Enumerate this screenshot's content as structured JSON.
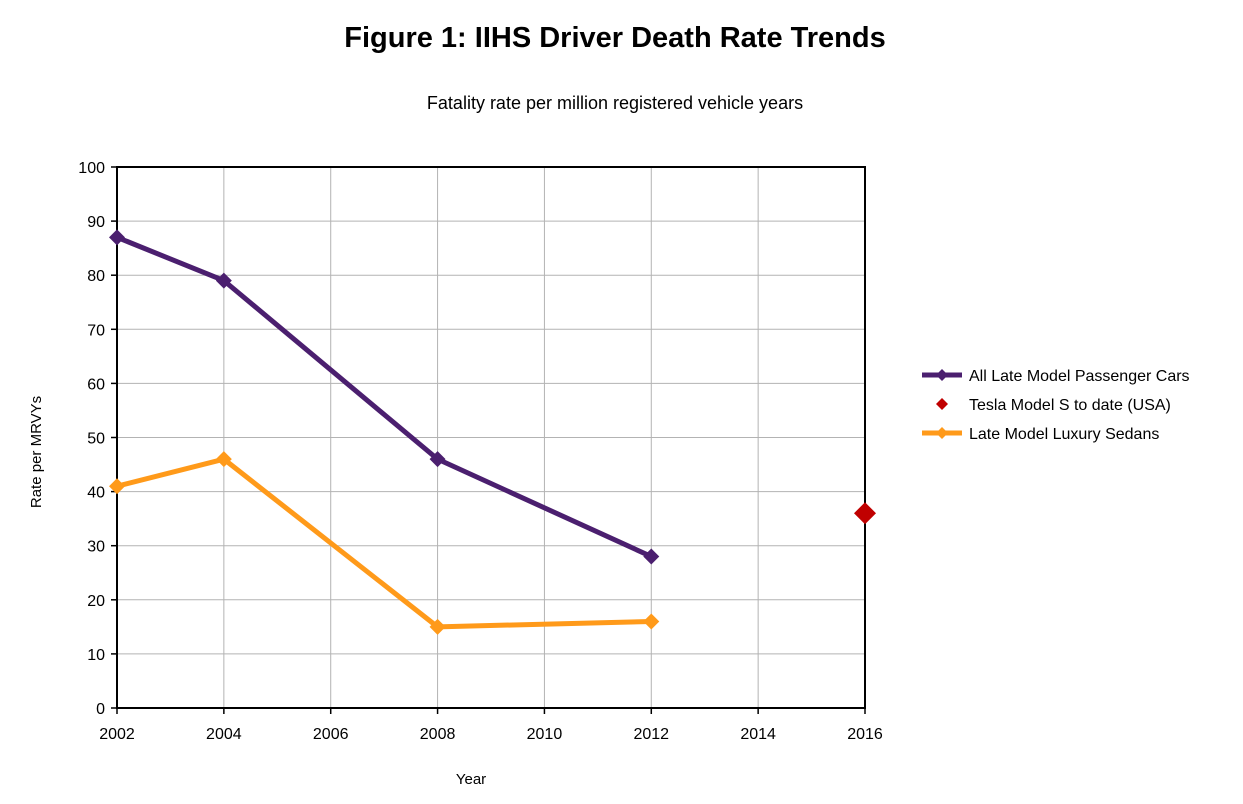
{
  "chart_data": {
    "type": "line",
    "title": "Figure 1: IIHS Driver Death Rate Trends",
    "subtitle": "Fatality rate per million registered vehicle years",
    "xlabel": "Year",
    "ylabel": "Rate per MRVYs",
    "xlim": [
      2002,
      2016
    ],
    "ylim": [
      0,
      100
    ],
    "x_ticks": [
      2002,
      2004,
      2006,
      2008,
      2010,
      2012,
      2014,
      2016
    ],
    "y_ticks": [
      0,
      10,
      20,
      30,
      40,
      50,
      60,
      70,
      80,
      90,
      100
    ],
    "grid": true,
    "legend_position": "right",
    "series": [
      {
        "name": "All Late Model Passenger Cars",
        "color": "#4b1f6f",
        "points": [
          {
            "x": 2002,
            "y": 87
          },
          {
            "x": 2004,
            "y": 79
          },
          {
            "x": 2008,
            "y": 46
          },
          {
            "x": 2012,
            "y": 28
          }
        ]
      },
      {
        "name": "Tesla Model S to date (USA)",
        "color": "#c00000",
        "points": [
          {
            "x": 2016,
            "y": 36
          }
        ]
      },
      {
        "name": "Late Model Luxury Sedans",
        "color": "#ff9a1a",
        "points": [
          {
            "x": 2002,
            "y": 41
          },
          {
            "x": 2004,
            "y": 46
          },
          {
            "x": 2008,
            "y": 15
          },
          {
            "x": 2012,
            "y": 16
          }
        ]
      }
    ]
  }
}
